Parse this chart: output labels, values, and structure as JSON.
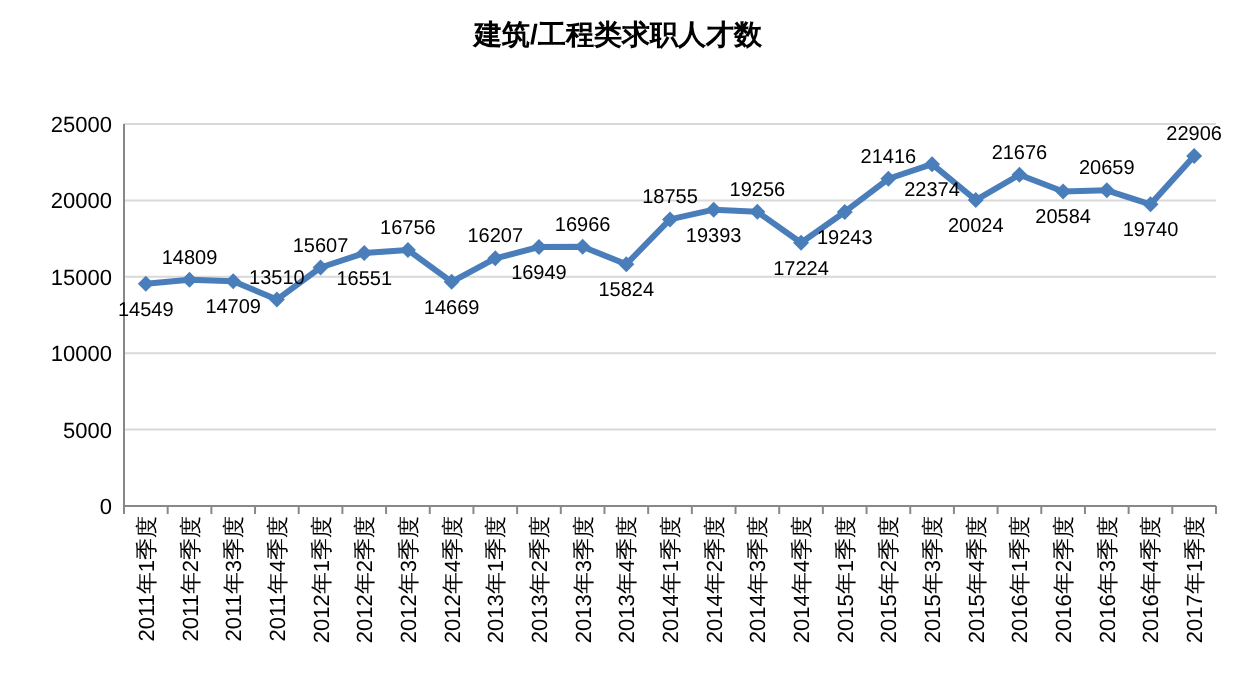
{
  "chart_data": {
    "type": "line",
    "title": "建筑/工程类求职人才数",
    "categories": [
      "2011年1季度",
      "2011年2季度",
      "2011年3季度",
      "2011年4季度",
      "2012年1季度",
      "2012年2季度",
      "2012年3季度",
      "2012年4季度",
      "2013年1季度",
      "2013年2季度",
      "2013年3季度",
      "2013年4季度",
      "2014年1季度",
      "2014年2季度",
      "2014年3季度",
      "2014年4季度",
      "2015年1季度",
      "2015年2季度",
      "2015年3季度",
      "2015年4季度",
      "2016年1季度",
      "2016年2季度",
      "2016年3季度",
      "2016年4季度",
      "2017年1季度"
    ],
    "series": [
      {
        "color": "#4a7ebb",
        "values": [
          14549,
          14809,
          14709,
          13510,
          15607,
          16551,
          16756,
          14669,
          16207,
          16949,
          16966,
          15824,
          18755,
          19393,
          19256,
          17224,
          19243,
          21416,
          22374,
          20024,
          21676,
          20584,
          20659,
          19740,
          22906
        ]
      }
    ],
    "ylim": [
      0,
      25000
    ],
    "yticks": [
      0,
      5000,
      10000,
      15000,
      20000,
      25000
    ],
    "grid": "y",
    "data_labels": true,
    "marker": "diamond",
    "line_style": "solid"
  }
}
